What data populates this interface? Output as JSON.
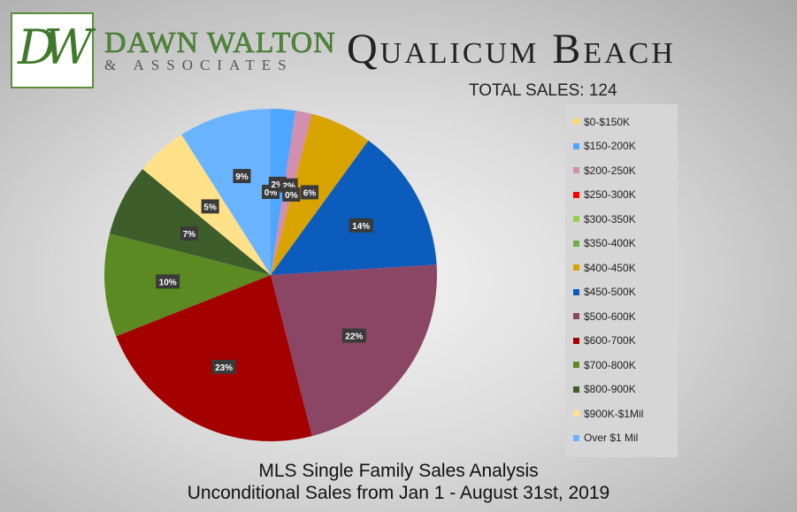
{
  "brand": {
    "monogram": "DW",
    "name": "DAWN WALTON",
    "subtitle": "& ASSOCIATES",
    "colors": {
      "green": "#4e8a36"
    }
  },
  "header": {
    "title": "Qualicum Beach",
    "total_sales": "TOTAL SALES: 124"
  },
  "footer": {
    "line1": "MLS Single Family Sales Analysis",
    "line2": "Unconditional Sales from Jan 1 - August 31st, 2019"
  },
  "chart_data": {
    "type": "pie",
    "title": "Qualicum Beach",
    "subtitle": "TOTAL SALES: 124",
    "legend_position": "right",
    "start": "top, clockwise",
    "categories": [
      "$0-$150K",
      "$150-200K",
      "$200-250K",
      "$250-300K",
      "$300-350K",
      "$350-400K",
      "$400-450K",
      "$450-500K",
      "$500-600K",
      "$600-700K",
      "$700-800K",
      "$800-900K",
      "$900K-$1Mil",
      "Over $1 Mil"
    ],
    "values": [
      0,
      2.4,
      1.6,
      0,
      0,
      0,
      6,
      14,
      22,
      23,
      10,
      7,
      5,
      9
    ],
    "labels": [
      "0%",
      "2%",
      "2%",
      "0%",
      "0%",
      "0%",
      "6%",
      "14%",
      "22%",
      "23%",
      "10%",
      "7%",
      "5%",
      "9%"
    ],
    "colors": [
      "#ffd966",
      "#4da6ff",
      "#d38fb0",
      "#ff0000",
      "#92d050",
      "#70ad47",
      "#d9a300",
      "#0b5cbc",
      "#8b4565",
      "#a50000",
      "#5c8a22",
      "#3d5e2a",
      "#ffe18a",
      "#6ab4ff"
    ]
  }
}
